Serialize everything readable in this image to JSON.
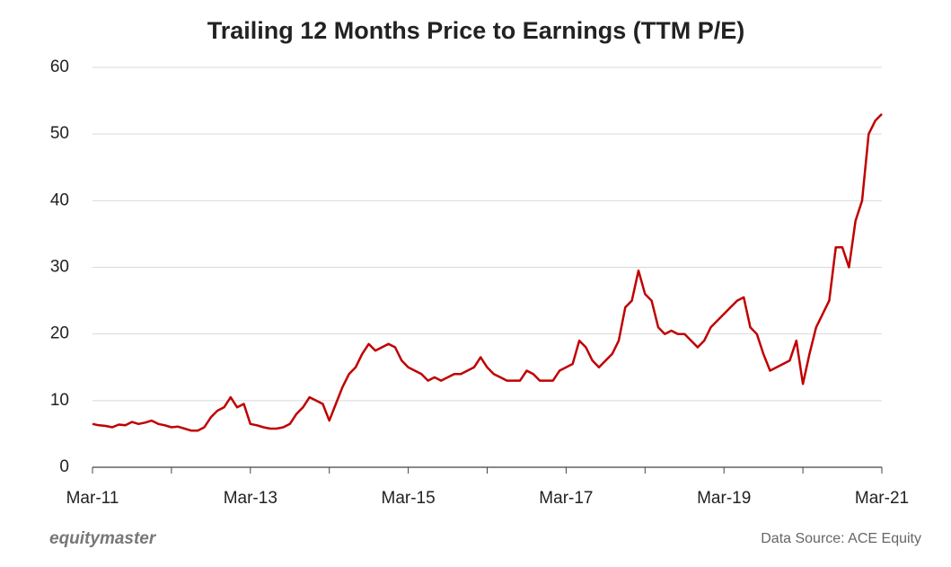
{
  "chart_data": {
    "type": "line",
    "title": "Trailing 12 Months Price to Earnings (TTM P/E)",
    "categories": [
      "Mar-11",
      null,
      null,
      null,
      null,
      null,
      null,
      null,
      null,
      null,
      null,
      null,
      null,
      null,
      null,
      null,
      null,
      null,
      null,
      null,
      null,
      null,
      null,
      null,
      "Mar-13",
      null,
      null,
      null,
      null,
      null,
      null,
      null,
      null,
      null,
      null,
      null,
      null,
      null,
      null,
      null,
      null,
      null,
      null,
      null,
      null,
      null,
      null,
      null,
      "Mar-15",
      null,
      null,
      null,
      null,
      null,
      null,
      null,
      null,
      null,
      null,
      null,
      null,
      null,
      null,
      null,
      null,
      null,
      null,
      null,
      null,
      null,
      null,
      null,
      "Mar-17",
      null,
      null,
      null,
      null,
      null,
      null,
      null,
      null,
      null,
      null,
      null,
      null,
      null,
      null,
      null,
      null,
      null,
      null,
      null,
      null,
      null,
      null,
      null,
      "Mar-19",
      null,
      null,
      null,
      null,
      null,
      null,
      null,
      null,
      null,
      null,
      null,
      null,
      null,
      null,
      null,
      null,
      null,
      null,
      null,
      null,
      null,
      null,
      null,
      "Mar-21"
    ],
    "series": [
      {
        "name": "TTM P/E",
        "color": "#c00000",
        "values": [
          6.5,
          6.3,
          6.2,
          6.0,
          6.4,
          6.3,
          6.8,
          6.5,
          6.7,
          7.0,
          6.5,
          6.3,
          6.0,
          6.1,
          5.8,
          5.5,
          5.5,
          6.0,
          7.5,
          8.5,
          9.0,
          10.5,
          9.0,
          9.5,
          6.5,
          6.3,
          6.0,
          5.8,
          5.8,
          6.0,
          6.5,
          8.0,
          9.0,
          10.5,
          10.0,
          9.5,
          7.0,
          9.5,
          12.0,
          14.0,
          15.0,
          17.0,
          18.5,
          17.5,
          18.0,
          18.5,
          18.0,
          16.0,
          15.0,
          14.5,
          14.0,
          13.0,
          13.5,
          13.0,
          13.5,
          14.0,
          14.0,
          14.5,
          15.0,
          16.5,
          15.0,
          14.0,
          13.5,
          13.0,
          13.0,
          13.0,
          14.5,
          14.0,
          13.0,
          13.0,
          13.0,
          14.5,
          15.0,
          15.5,
          19.0,
          18.0,
          16.0,
          15.0,
          16.0,
          17.0,
          19.0,
          24.0,
          25.0,
          29.5,
          26.0,
          25.0,
          21.0,
          20.0,
          20.5,
          20.0,
          20.0,
          19.0,
          18.0,
          19.0,
          21.0,
          22.0,
          23.0,
          24.0,
          25.0,
          25.5,
          21.0,
          20.0,
          17.0,
          14.5,
          15.0,
          15.5,
          16.0,
          19.0,
          12.5,
          17.0,
          21.0,
          23.0,
          25.0,
          33.0,
          33.0,
          30.0,
          37.0,
          40.0,
          50.0,
          52.0,
          53.0
        ]
      }
    ],
    "ylim": [
      0,
      60
    ],
    "yticks": [
      0,
      10,
      20,
      30,
      40,
      50,
      60
    ],
    "grid": true,
    "logo": "equitymaster",
    "source": "Data Source: ACE Equity"
  }
}
